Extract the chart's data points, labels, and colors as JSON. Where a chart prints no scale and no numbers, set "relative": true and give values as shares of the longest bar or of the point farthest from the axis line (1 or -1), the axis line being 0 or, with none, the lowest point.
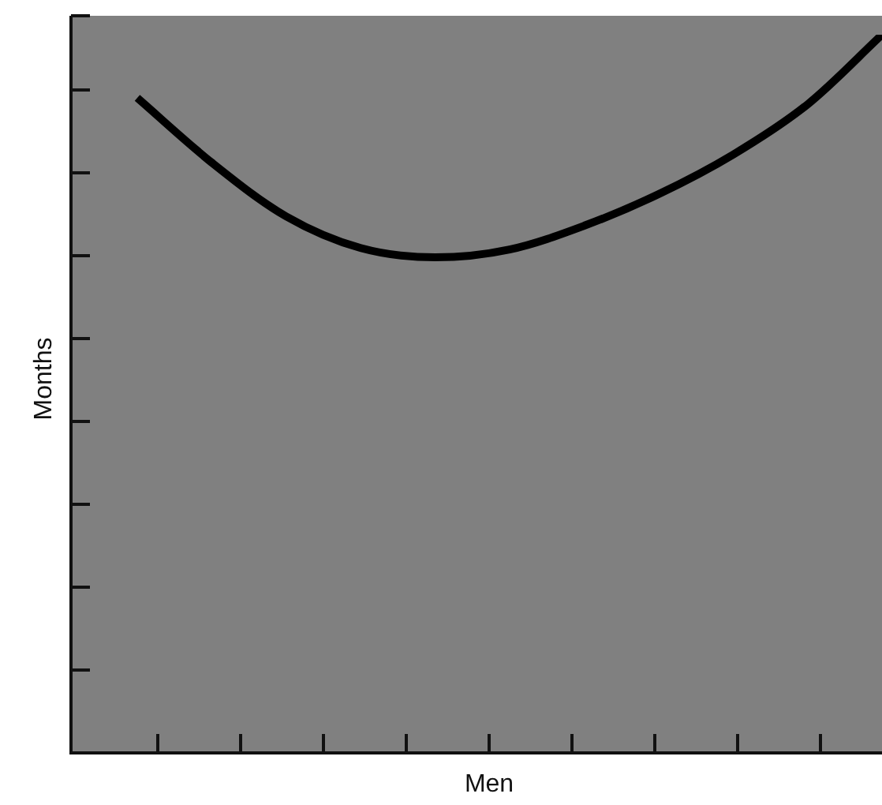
{
  "chart_data": {
    "type": "line",
    "relative": true,
    "xlabel": "Men",
    "ylabel": "Months",
    "categories": [
      null,
      null,
      null,
      null,
      null,
      null,
      null,
      null,
      null,
      null,
      null
    ],
    "series": [
      {
        "color": "#000000",
        "values": [
          0.912,
          0.822,
          0.747,
          0.703,
          0.69,
          0.701,
          0.734,
          0.778,
          0.833,
          0.903,
          1
        ]
      }
    ],
    "legend": false,
    "marker": "none",
    "line_style": "solid"
  }
}
